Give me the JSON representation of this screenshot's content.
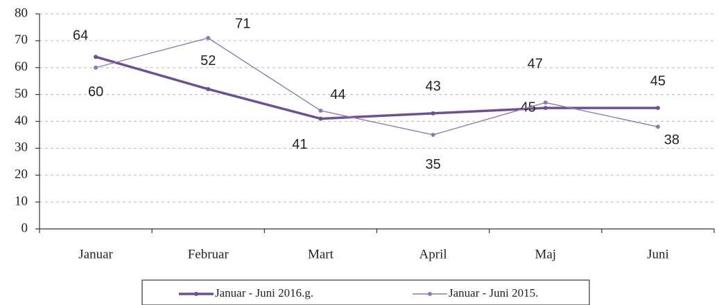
{
  "chart_data": {
    "type": "line",
    "categories": [
      "Januar",
      "Februar",
      "Mart",
      "April",
      "Maj",
      "Juni"
    ],
    "series": [
      {
        "name": "Januar - Juni 2016.g.",
        "color": "#6f4f93",
        "values": [
          64,
          52,
          41,
          43,
          45,
          45
        ]
      },
      {
        "name": "Januar - Juni 2015.",
        "color": "#9278b0",
        "values": [
          60,
          71,
          44,
          35,
          47,
          38
        ]
      }
    ],
    "ylim": [
      0,
      80
    ],
    "yticks": [
      0,
      10,
      20,
      30,
      40,
      50,
      60,
      70,
      80
    ],
    "grid": true,
    "legend": "bottom"
  }
}
